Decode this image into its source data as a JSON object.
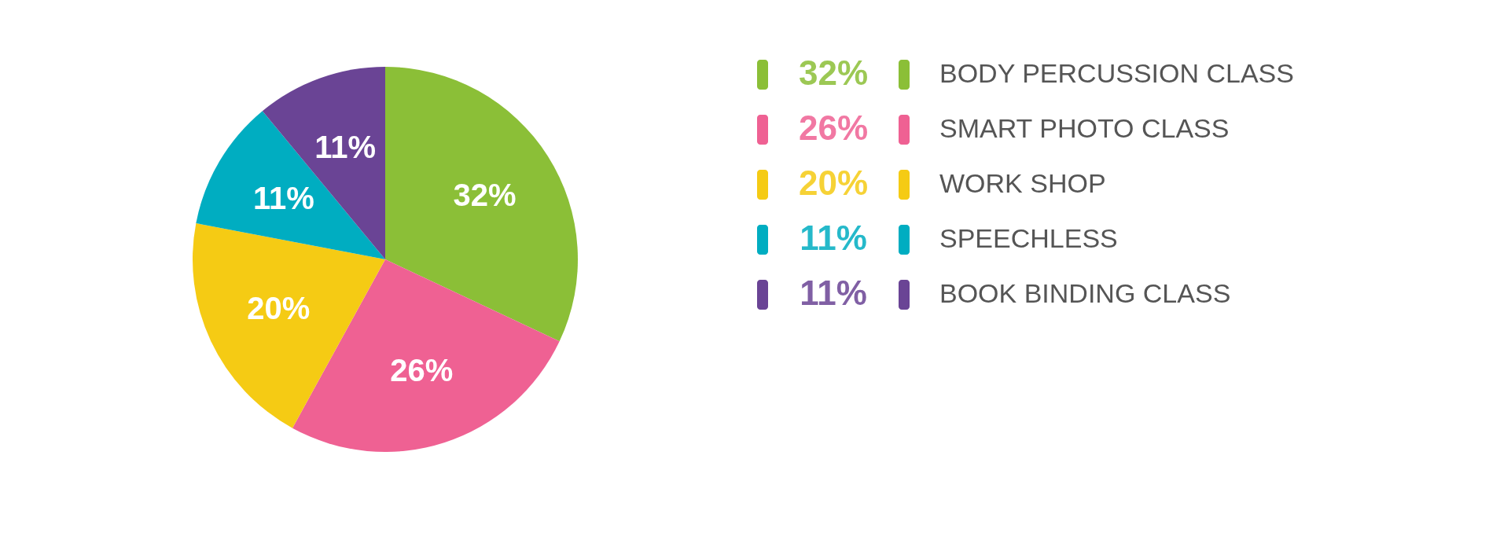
{
  "chart_data": {
    "type": "pie",
    "categories": [
      "BODY PERCUSSION CLASS",
      "SMART PHOTO CLASS",
      "WORK SHOP",
      "SPEECHLESS",
      "BOOK BINDING CLASS"
    ],
    "values": [
      32,
      26,
      20,
      11,
      11
    ],
    "value_labels": [
      "32%",
      "26%",
      "20%",
      "11%",
      "11%"
    ],
    "colors": [
      "#8bbf37",
      "#ef6193",
      "#f5cb14",
      "#00adc1",
      "#6a4495"
    ],
    "legend": "right"
  }
}
